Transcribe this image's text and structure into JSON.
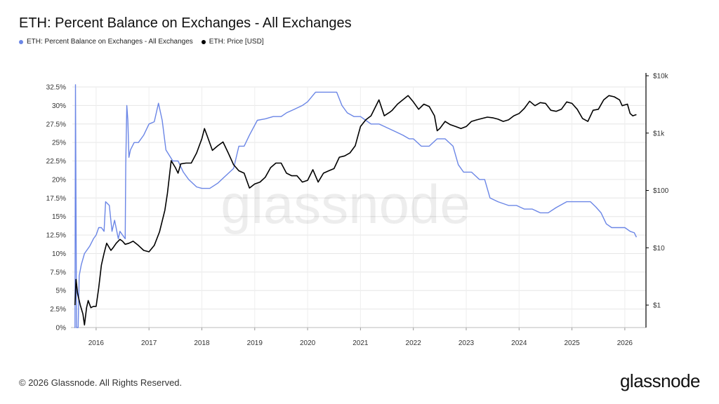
{
  "header": {
    "title": "ETH: Percent Balance on Exchanges - All Exchanges"
  },
  "legend": {
    "items": [
      {
        "label": "ETH: Percent Balance on Exchanges - All Exchanges",
        "color": "#6b86e6"
      },
      {
        "label": "ETH: Price [USD]",
        "color": "#000000"
      }
    ]
  },
  "footer": {
    "copyright": "© 2026 Glassnode. All Rights Reserved.",
    "logo": "glassnode"
  },
  "watermark": "glassnode",
  "chart_data": {
    "type": "line",
    "title": "ETH: Percent Balance on Exchanges - All Exchanges",
    "x_ticks": [
      "2016",
      "2017",
      "2018",
      "2019",
      "2020",
      "2021",
      "2022",
      "2023",
      "2024",
      "2025",
      "2026"
    ],
    "xlim": [
      2015.55,
      2026.4
    ],
    "y_left": {
      "ticks": [
        "0%",
        "2.5%",
        "5%",
        "7.5%",
        "10%",
        "12.5%",
        "15%",
        "17.5%",
        "20%",
        "22.5%",
        "25%",
        "27.5%",
        "30%",
        "32.5%"
      ],
      "lim": [
        0,
        32.5
      ]
    },
    "y_right": {
      "scale": "log",
      "ticks": [
        "$1",
        "$10",
        "$100",
        "$1k",
        "$10k"
      ],
      "lim": [
        0.4,
        10000
      ]
    },
    "grid": true,
    "legend_position": "top-left",
    "series": [
      {
        "name": "ETH: Percent Balance on Exchanges - All Exchanges",
        "axis": "left",
        "color": "#6b86e6",
        "points": [
          [
            2015.59,
            0
          ],
          [
            2015.6,
            0
          ],
          [
            2015.61,
            32.8
          ],
          [
            2015.63,
            0
          ],
          [
            2015.66,
            0
          ],
          [
            2015.68,
            7
          ],
          [
            2015.72,
            8.5
          ],
          [
            2015.78,
            10
          ],
          [
            2015.88,
            11
          ],
          [
            2015.95,
            12
          ],
          [
            2016.0,
            12.5
          ],
          [
            2016.05,
            13.5
          ],
          [
            2016.1,
            13.5
          ],
          [
            2016.15,
            13
          ],
          [
            2016.18,
            17
          ],
          [
            2016.25,
            16.5
          ],
          [
            2016.3,
            13
          ],
          [
            2016.35,
            14.5
          ],
          [
            2016.42,
            12
          ],
          [
            2016.45,
            13
          ],
          [
            2016.5,
            12.5
          ],
          [
            2016.55,
            12
          ],
          [
            2016.56,
            22
          ],
          [
            2016.58,
            30
          ],
          [
            2016.6,
            28
          ],
          [
            2016.62,
            23
          ],
          [
            2016.65,
            24
          ],
          [
            2016.72,
            25
          ],
          [
            2016.8,
            25
          ],
          [
            2016.9,
            26
          ],
          [
            2017.0,
            27.5
          ],
          [
            2017.1,
            27.8
          ],
          [
            2017.18,
            30.3
          ],
          [
            2017.25,
            28
          ],
          [
            2017.32,
            24
          ],
          [
            2017.45,
            22.5
          ],
          [
            2017.55,
            22.5
          ],
          [
            2017.65,
            21
          ],
          [
            2017.75,
            20
          ],
          [
            2017.9,
            19
          ],
          [
            2018.0,
            18.8
          ],
          [
            2018.15,
            18.8
          ],
          [
            2018.3,
            19.5
          ],
          [
            2018.45,
            20.5
          ],
          [
            2018.6,
            21.5
          ],
          [
            2018.7,
            24.5
          ],
          [
            2018.8,
            24.5
          ],
          [
            2018.9,
            26
          ],
          [
            2019.05,
            28
          ],
          [
            2019.2,
            28.2
          ],
          [
            2019.35,
            28.5
          ],
          [
            2019.5,
            28.5
          ],
          [
            2019.6,
            29
          ],
          [
            2019.75,
            29.5
          ],
          [
            2019.9,
            30
          ],
          [
            2020.0,
            30.5
          ],
          [
            2020.15,
            31.8
          ],
          [
            2020.3,
            31.8
          ],
          [
            2020.45,
            31.8
          ],
          [
            2020.55,
            31.8
          ],
          [
            2020.65,
            30
          ],
          [
            2020.75,
            29
          ],
          [
            2020.88,
            28.5
          ],
          [
            2021.0,
            28.5
          ],
          [
            2021.1,
            28
          ],
          [
            2021.2,
            27.5
          ],
          [
            2021.35,
            27.5
          ],
          [
            2021.5,
            27
          ],
          [
            2021.65,
            26.5
          ],
          [
            2021.8,
            26
          ],
          [
            2021.92,
            25.5
          ],
          [
            2022.0,
            25.5
          ],
          [
            2022.15,
            24.5
          ],
          [
            2022.3,
            24.5
          ],
          [
            2022.45,
            25.5
          ],
          [
            2022.6,
            25.5
          ],
          [
            2022.75,
            24.5
          ],
          [
            2022.85,
            22
          ],
          [
            2022.95,
            21
          ],
          [
            2023.1,
            21
          ],
          [
            2023.25,
            20
          ],
          [
            2023.35,
            20
          ],
          [
            2023.45,
            17.5
          ],
          [
            2023.6,
            17
          ],
          [
            2023.8,
            16.5
          ],
          [
            2023.95,
            16.5
          ],
          [
            2024.1,
            16
          ],
          [
            2024.25,
            16
          ],
          [
            2024.4,
            15.5
          ],
          [
            2024.55,
            15.5
          ],
          [
            2024.7,
            16.2
          ],
          [
            2024.9,
            17
          ],
          [
            2025.05,
            17
          ],
          [
            2025.2,
            17
          ],
          [
            2025.35,
            17
          ],
          [
            2025.45,
            16.3
          ],
          [
            2025.55,
            15.5
          ],
          [
            2025.65,
            14
          ],
          [
            2025.75,
            13.5
          ],
          [
            2025.9,
            13.5
          ],
          [
            2026.0,
            13.5
          ],
          [
            2026.1,
            13
          ],
          [
            2026.18,
            12.8
          ],
          [
            2026.22,
            12.2
          ]
        ]
      },
      {
        "name": "ETH: Price [USD]",
        "axis": "right",
        "color": "#000000",
        "points": [
          [
            2015.6,
            1.0
          ],
          [
            2015.62,
            2.8
          ],
          [
            2015.65,
            1.6
          ],
          [
            2015.7,
            1.0
          ],
          [
            2015.75,
            0.7
          ],
          [
            2015.78,
            0.45
          ],
          [
            2015.82,
            0.9
          ],
          [
            2015.85,
            1.2
          ],
          [
            2015.9,
            0.9
          ],
          [
            2015.95,
            0.95
          ],
          [
            2016.0,
            0.95
          ],
          [
            2016.05,
            2.0
          ],
          [
            2016.1,
            5
          ],
          [
            2016.15,
            8
          ],
          [
            2016.2,
            12
          ],
          [
            2016.28,
            9
          ],
          [
            2016.32,
            10
          ],
          [
            2016.38,
            12
          ],
          [
            2016.45,
            14
          ],
          [
            2016.5,
            13
          ],
          [
            2016.55,
            11.5
          ],
          [
            2016.62,
            12
          ],
          [
            2016.7,
            13
          ],
          [
            2016.8,
            11
          ],
          [
            2016.9,
            9
          ],
          [
            2017.0,
            8.5
          ],
          [
            2017.1,
            11
          ],
          [
            2017.2,
            19
          ],
          [
            2017.3,
            45
          ],
          [
            2017.35,
            90
          ],
          [
            2017.42,
            330
          ],
          [
            2017.5,
            250
          ],
          [
            2017.55,
            200
          ],
          [
            2017.6,
            290
          ],
          [
            2017.7,
            300
          ],
          [
            2017.8,
            300
          ],
          [
            2017.9,
            450
          ],
          [
            2018.0,
            800
          ],
          [
            2018.05,
            1200
          ],
          [
            2018.1,
            900
          ],
          [
            2018.2,
            500
          ],
          [
            2018.3,
            600
          ],
          [
            2018.4,
            700
          ],
          [
            2018.5,
            450
          ],
          [
            2018.6,
            280
          ],
          [
            2018.7,
            220
          ],
          [
            2018.8,
            200
          ],
          [
            2018.9,
            110
          ],
          [
            2019.0,
            130
          ],
          [
            2019.1,
            140
          ],
          [
            2019.2,
            170
          ],
          [
            2019.3,
            250
          ],
          [
            2019.4,
            300
          ],
          [
            2019.5,
            300
          ],
          [
            2019.6,
            200
          ],
          [
            2019.7,
            180
          ],
          [
            2019.8,
            180
          ],
          [
            2019.9,
            140
          ],
          [
            2020.0,
            150
          ],
          [
            2020.1,
            230
          ],
          [
            2020.2,
            140
          ],
          [
            2020.3,
            200
          ],
          [
            2020.4,
            220
          ],
          [
            2020.5,
            240
          ],
          [
            2020.6,
            380
          ],
          [
            2020.7,
            400
          ],
          [
            2020.8,
            450
          ],
          [
            2020.9,
            600
          ],
          [
            2021.0,
            1300
          ],
          [
            2021.1,
            1700
          ],
          [
            2021.2,
            2000
          ],
          [
            2021.35,
            3800
          ],
          [
            2021.45,
            2000
          ],
          [
            2021.55,
            2300
          ],
          [
            2021.6,
            2500
          ],
          [
            2021.7,
            3200
          ],
          [
            2021.8,
            3800
          ],
          [
            2021.9,
            4500
          ],
          [
            2022.0,
            3500
          ],
          [
            2022.1,
            2600
          ],
          [
            2022.2,
            3200
          ],
          [
            2022.3,
            2900
          ],
          [
            2022.4,
            2000
          ],
          [
            2022.45,
            1100
          ],
          [
            2022.5,
            1200
          ],
          [
            2022.6,
            1600
          ],
          [
            2022.7,
            1400
          ],
          [
            2022.8,
            1300
          ],
          [
            2022.9,
            1200
          ],
          [
            2023.0,
            1300
          ],
          [
            2023.1,
            1600
          ],
          [
            2023.2,
            1700
          ],
          [
            2023.3,
            1800
          ],
          [
            2023.4,
            1900
          ],
          [
            2023.5,
            1850
          ],
          [
            2023.6,
            1750
          ],
          [
            2023.7,
            1600
          ],
          [
            2023.8,
            1700
          ],
          [
            2023.9,
            2000
          ],
          [
            2024.0,
            2200
          ],
          [
            2024.1,
            2700
          ],
          [
            2024.2,
            3600
          ],
          [
            2024.3,
            3000
          ],
          [
            2024.4,
            3400
          ],
          [
            2024.5,
            3300
          ],
          [
            2024.6,
            2500
          ],
          [
            2024.7,
            2400
          ],
          [
            2024.8,
            2600
          ],
          [
            2024.9,
            3500
          ],
          [
            2025.0,
            3300
          ],
          [
            2025.1,
            2600
          ],
          [
            2025.2,
            1800
          ],
          [
            2025.3,
            1600
          ],
          [
            2025.4,
            2500
          ],
          [
            2025.5,
            2600
          ],
          [
            2025.6,
            3800
          ],
          [
            2025.7,
            4500
          ],
          [
            2025.8,
            4300
          ],
          [
            2025.9,
            3800
          ],
          [
            2025.95,
            3000
          ],
          [
            2026.05,
            3200
          ],
          [
            2026.1,
            2200
          ],
          [
            2026.15,
            2000
          ],
          [
            2026.22,
            2100
          ]
        ]
      }
    ]
  }
}
